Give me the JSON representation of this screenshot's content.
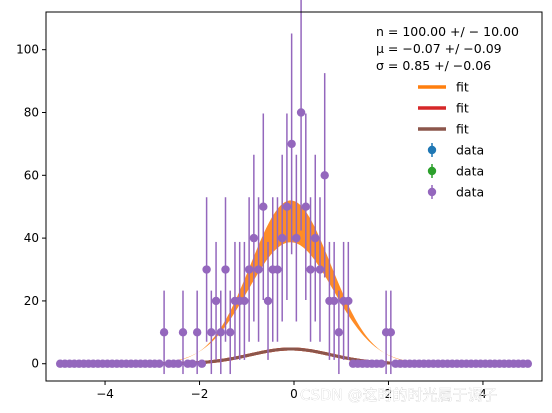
{
  "chart_data": {
    "type": "scatter",
    "title": "",
    "xlabel": "",
    "ylabel": "",
    "xlim": [
      -5.25,
      5.25
    ],
    "ylim": [
      -5.5,
      112
    ],
    "xticks": [
      -4,
      -2,
      0,
      2,
      4
    ],
    "yticks": [
      0,
      20,
      40,
      60,
      80,
      100
    ],
    "xtick_labels": [
      "−4",
      "−2",
      "0",
      "2",
      "4"
    ],
    "ytick_labels": [
      "0",
      "20",
      "40",
      "60",
      "80",
      "100"
    ],
    "grid": false,
    "legend_position": "upper-right",
    "fit_params": {
      "n": 100.0,
      "n_err": 10.0,
      "mu": -0.07,
      "mu_err": 0.09,
      "sigma": 0.85,
      "sigma_err": 0.06
    },
    "stats_lines": [
      "n = 100.00 +/ − 10.00",
      "μ = −0.07 +/ −0.09",
      "σ = 0.85 +/ −0.06"
    ],
    "legend": [
      {
        "label": "fit",
        "kind": "line",
        "color": "#ff7f0e"
      },
      {
        "label": "fit",
        "kind": "line",
        "color": "#d62728"
      },
      {
        "label": "fit",
        "kind": "line",
        "color": "#8c564b"
      },
      {
        "label": "data",
        "kind": "errorbar",
        "color": "#1f77b4"
      },
      {
        "label": "data",
        "kind": "errorbar",
        "color": "#2ca02c"
      },
      {
        "label": "data",
        "kind": "errorbar",
        "color": "#9467bd"
      }
    ],
    "band": {
      "color": "#ff7f0e",
      "peak_low": 41,
      "peak_high": 52
    },
    "series": [
      {
        "name": "data",
        "color": "#9467bd",
        "x": [
          -4.95,
          -4.85,
          -4.75,
          -4.65,
          -4.55,
          -4.45,
          -4.35,
          -4.25,
          -4.15,
          -4.05,
          -3.95,
          -3.85,
          -3.75,
          -3.65,
          -3.55,
          -3.45,
          -3.35,
          -3.25,
          -3.15,
          -3.05,
          -2.95,
          -2.85,
          -2.75,
          -2.65,
          -2.55,
          -2.45,
          -2.35,
          -2.25,
          -2.15,
          -2.05,
          -1.95,
          -1.85,
          -1.75,
          -1.65,
          -1.55,
          -1.45,
          -1.35,
          -1.25,
          -1.15,
          -1.05,
          -0.95,
          -0.85,
          -0.75,
          -0.65,
          -0.55,
          -0.45,
          -0.35,
          -0.25,
          -0.15,
          -0.05,
          0.05,
          0.15,
          0.25,
          0.35,
          0.45,
          0.55,
          0.65,
          0.75,
          0.85,
          0.95,
          1.05,
          1.15,
          1.25,
          1.35,
          1.45,
          1.55,
          1.65,
          1.75,
          1.85,
          1.95,
          2.05,
          2.15,
          2.25,
          2.35,
          2.45,
          2.55,
          2.65,
          2.75,
          2.85,
          2.95,
          3.05,
          3.15,
          3.25,
          3.35,
          3.45,
          3.55,
          3.65,
          3.75,
          3.85,
          3.95,
          4.05,
          4.15,
          4.25,
          4.35,
          4.45,
          4.55,
          4.65,
          4.75,
          4.85,
          4.95
        ],
        "y": [
          0,
          0,
          0,
          0,
          0,
          0,
          0,
          0,
          0,
          0,
          0,
          0,
          0,
          0,
          0,
          0,
          0,
          0,
          0,
          0,
          0,
          0,
          10,
          0,
          0,
          0,
          10,
          0,
          0,
          10,
          0,
          30,
          10,
          20,
          10,
          30,
          10,
          20,
          20,
          20,
          30,
          40,
          30,
          50,
          20,
          30,
          30,
          40,
          50,
          70,
          40,
          80,
          50,
          30,
          40,
          30,
          60,
          20,
          20,
          10,
          20,
          20,
          0,
          0,
          0,
          0,
          0,
          0,
          0,
          10,
          10,
          0,
          0,
          0,
          0,
          0,
          0,
          0,
          0,
          0,
          0,
          0,
          0,
          0,
          0,
          0,
          0,
          0,
          0,
          0,
          0,
          0,
          0,
          0,
          0,
          0,
          0,
          0,
          0,
          0
        ]
      }
    ]
  },
  "watermark": "CSDN @这时的时光属于调子"
}
